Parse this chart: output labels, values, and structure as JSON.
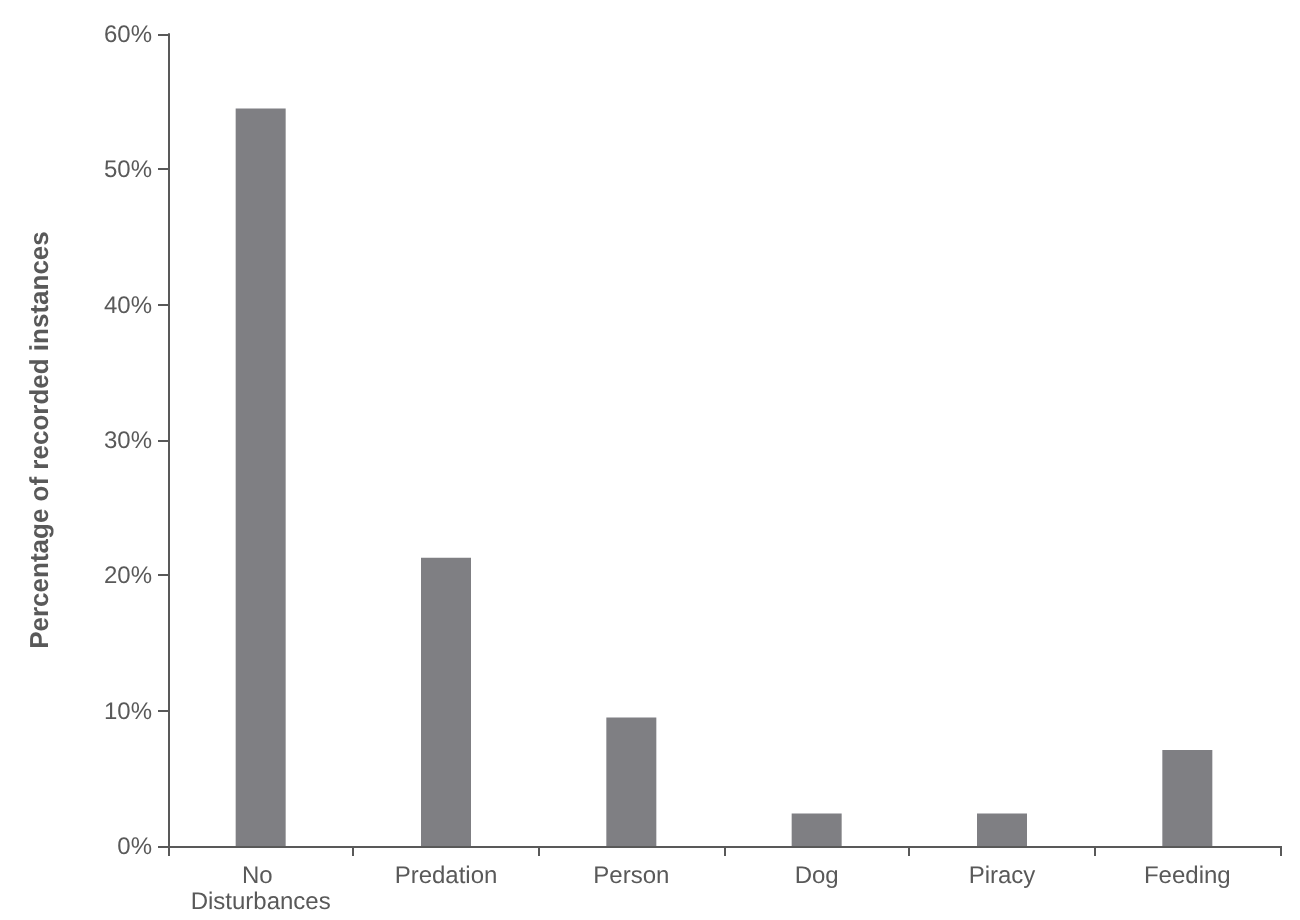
{
  "chart_data": {
    "type": "bar",
    "ylabel": "Percentage of recorded instances",
    "categories": [
      "No Disturbances",
      "Predation",
      "Person",
      "Dog",
      "Piracy",
      "Feeding"
    ],
    "values": [
      54.5,
      21.3,
      9.5,
      2.4,
      2.4,
      7.1
    ],
    "color": "#7f7f83",
    "ylim": [
      0,
      60
    ],
    "yticks": [
      {
        "value": 0,
        "label": "0%"
      },
      {
        "value": 10,
        "label": "10%"
      },
      {
        "value": 20,
        "label": "20%"
      },
      {
        "value": 30,
        "label": "30%"
      },
      {
        "value": 40,
        "label": "40%"
      },
      {
        "value": 50,
        "label": "50%"
      },
      {
        "value": 60,
        "label": "60%"
      }
    ],
    "grid": false
  }
}
